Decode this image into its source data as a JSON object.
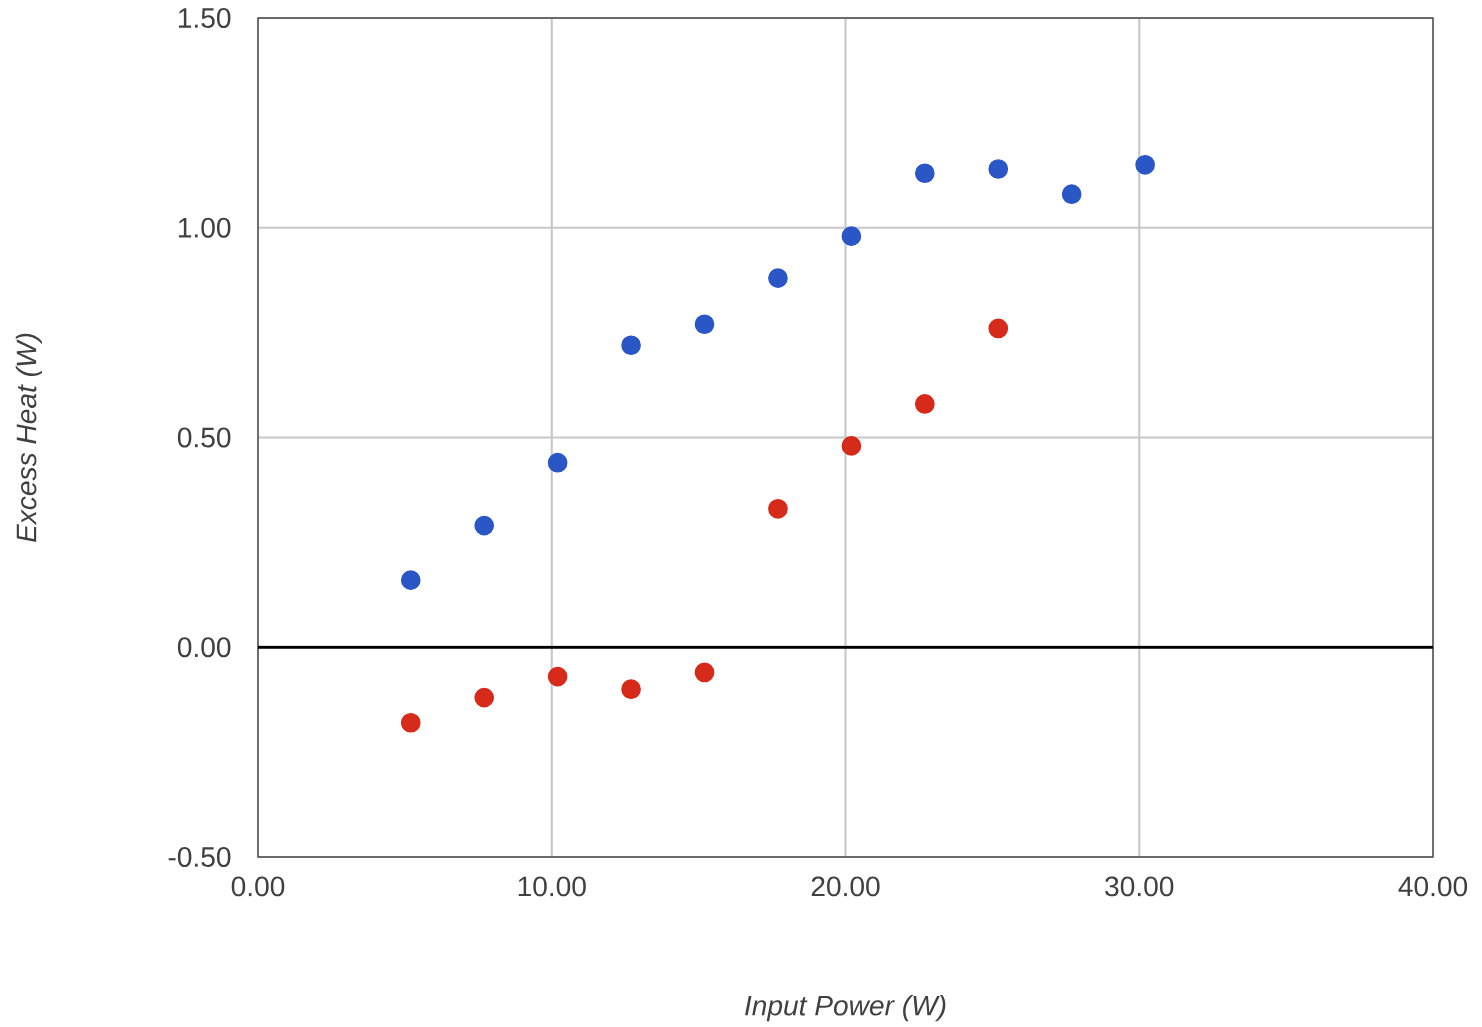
{
  "chart_data": {
    "type": "scatter",
    "xlabel": "*Input Power (W)*",
    "ylabel": "*Excess Heat (W)*",
    "xlim": [
      0,
      40
    ],
    "ylim": [
      -0.5,
      1.5
    ],
    "xticks": [
      {
        "value": 0,
        "label": "0.00"
      },
      {
        "value": 10,
        "label": "10.00"
      },
      {
        "value": 20,
        "label": "20.00"
      },
      {
        "value": 30,
        "label": "30.00"
      },
      {
        "value": 40,
        "label": "40.00"
      }
    ],
    "yticks": [
      {
        "value": -0.5,
        "label": "-0.50"
      },
      {
        "value": 0,
        "label": "0.00"
      },
      {
        "value": 0.5,
        "label": "0.50"
      },
      {
        "value": 1,
        "label": "1.00"
      },
      {
        "value": 1.5,
        "label": "1.50"
      }
    ],
    "grid": true,
    "marker": "circle",
    "ref_lines": [
      {
        "axis": "y",
        "value": 0,
        "color": "#000000"
      }
    ],
    "series": [
      {
        "color": "#2a56c6",
        "x": [
          5.2,
          7.7,
          10.2,
          12.7,
          15.2,
          17.7,
          20.2,
          22.7,
          25.2,
          27.7,
          30.2
        ],
        "values": [
          0.16,
          0.29,
          0.44,
          0.72,
          0.77,
          0.88,
          0.98,
          1.13,
          1.14,
          1.08,
          1.15
        ]
      },
      {
        "color": "#d62a1a",
        "x": [
          5.2,
          7.7,
          10.2,
          12.7,
          15.2,
          17.7,
          20.2,
          22.7,
          25.2
        ],
        "values": [
          -0.18,
          -0.12,
          -0.07,
          -0.1,
          -0.06,
          0.33,
          0.48,
          0.58,
          0.76
        ]
      }
    ]
  }
}
